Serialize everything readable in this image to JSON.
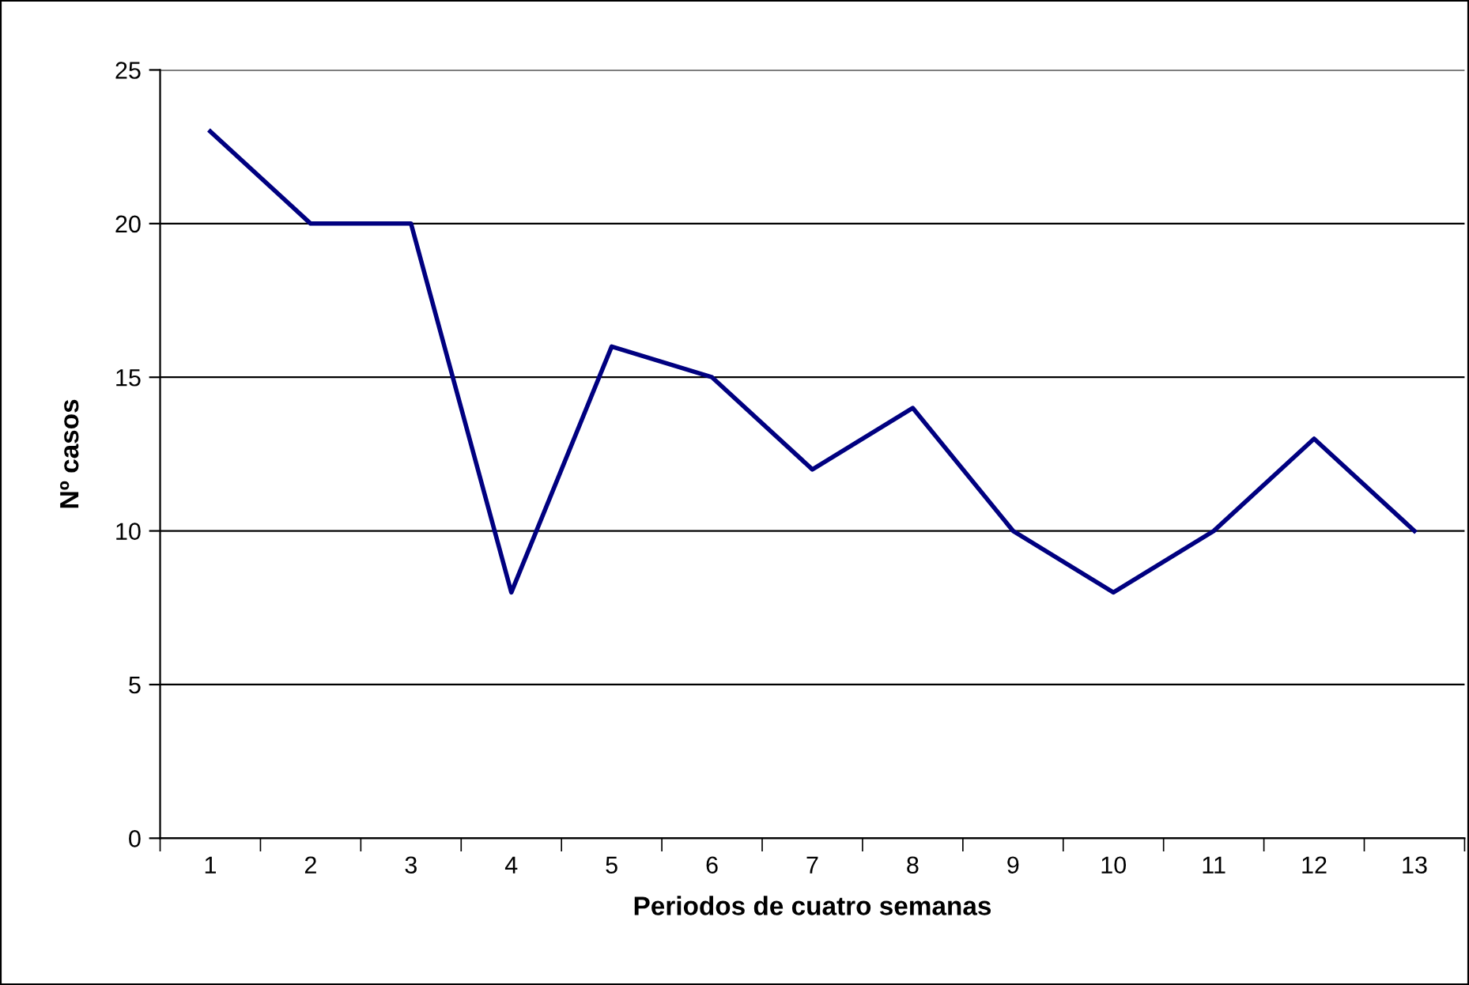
{
  "chart_data": {
    "type": "line",
    "xlabel": "Periodos de cuatro semanas",
    "ylabel": "Nº casos",
    "categories": [
      "1",
      "2",
      "3",
      "4",
      "5",
      "6",
      "7",
      "8",
      "9",
      "10",
      "11",
      "12",
      "13"
    ],
    "series": [
      {
        "color": "#000080",
        "values": [
          23,
          20,
          20,
          8,
          16,
          15,
          12,
          14,
          10,
          8,
          10,
          13,
          10
        ]
      }
    ],
    "ylim": [
      0,
      25
    ],
    "yticks": [
      0,
      5,
      10,
      15,
      20,
      25
    ],
    "grid": "y",
    "marker": "none",
    "line_style": "solid"
  }
}
